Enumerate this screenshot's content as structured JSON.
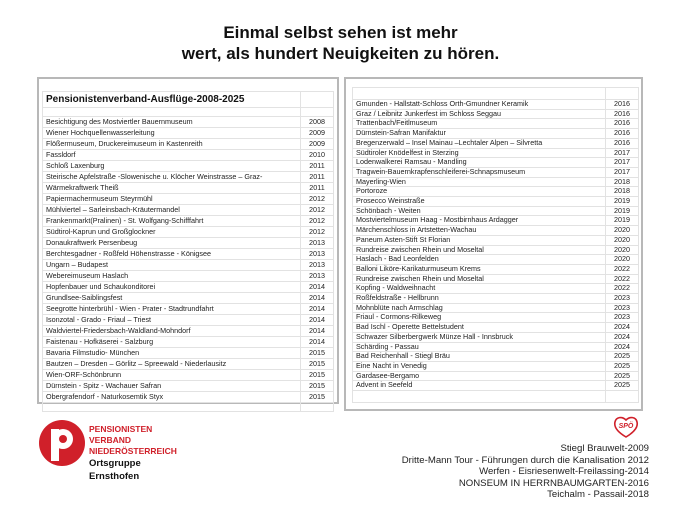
{
  "headline": [
    "Einmal selbst sehen ist mehr",
    "wert, als hundert Neuigkeiten zu hören."
  ],
  "left_table": {
    "title": "Pensionistenverband-Ausflüge-2008-2025",
    "rows": [
      [
        "Besichtigung des Mostviertler Bauernmuseum",
        "2008"
      ],
      [
        "Wiener Hochquellenwasserleitung",
        "2009"
      ],
      [
        "Flößermuseum, Druckereimuseum in Kastenreith",
        "2009"
      ],
      [
        "Fassldorf",
        "2010"
      ],
      [
        "Schloß Laxenburg",
        "2011"
      ],
      [
        "Steirische Apfelstraße -Slowenische u. Klöcher Weinstrasse – Graz-",
        "2011"
      ],
      [
        "Wärmekraftwerk Theiß",
        "2011"
      ],
      [
        "Papiermachermuseum Steyrmühl",
        "2012"
      ],
      [
        "Mühlviertel – Sarleinsbach-Kräutermandel",
        "2012"
      ],
      [
        "Frankenmarkt(Pralinen) - St. Wolfgang-Schifffahrt",
        "2012"
      ],
      [
        "Südtirol-Kaprun und Großglockner",
        "2012"
      ],
      [
        "Donaukraftwerk Persenbeug",
        "2013"
      ],
      [
        "Berchtesgadner - Roßfeld Höhenstrasse - Königsee",
        "2013"
      ],
      [
        "Ungarn – Budapest",
        "2013"
      ],
      [
        "Webereimuseum Haslach",
        "2013"
      ],
      [
        "Hopfenbauer und Schaukonditorei",
        "2014"
      ],
      [
        "Grundlsee-Saiblingsfest",
        "2014"
      ],
      [
        "Seegrotte hinterbrühl - Wien - Prater - Stadtrundfahrt",
        "2014"
      ],
      [
        "Isonzotal - Grado - Friaul – Triest",
        "2014"
      ],
      [
        "Waldviertel-Friedersbach-Waldland-Mohndorf",
        "2014"
      ],
      [
        "Faistenau - Hofkäserei - Salzburg",
        "2014"
      ],
      [
        "Bavaria Filmstudio- München",
        "2015"
      ],
      [
        "Bautzen – Dresden – Görlitz – Spreewald - Niederlausitz",
        "2015"
      ],
      [
        "Wien-ORF-Schönbrunn",
        "2015"
      ],
      [
        "Dürnstein - Spitz  - Wachauer Safran",
        "2015"
      ],
      [
        "Obergrafendorf - Naturkosemtik Styx",
        "2015"
      ]
    ]
  },
  "right_table": {
    "rows": [
      [
        "Gmunden - Hallstatt-Schloss Orth-Gmundner Keramik",
        "2016"
      ],
      [
        "Graz / Leibnitz Junkerfest im Schloss Seggau",
        "2016"
      ],
      [
        "Trattenbach/Feitlmuseum",
        "2016"
      ],
      [
        "Dürnstein-Safran Manifaktur",
        "2016"
      ],
      [
        "Bregenzerwald – Insel Mainau –Lechtaler Alpen – Silvretta",
        "2016"
      ],
      [
        "Südtiroler Knödelfest in Sterzing",
        "2017"
      ],
      [
        "Lodenwalkerei Ramsau - Mandling",
        "2017"
      ],
      [
        "Tragwein-Bauernkrapfenschleiferei-Schnapsmuseum",
        "2017"
      ],
      [
        "Mayerling-Wien",
        "2018"
      ],
      [
        "Portoroze",
        "2018"
      ],
      [
        "Prosecco Weinstraße",
        "2019"
      ],
      [
        "Schönbach - Weiten",
        "2019"
      ],
      [
        "Mostviertelmuseum Haag - Mostbirnhaus Ardagger",
        "2019"
      ],
      [
        "Märchenschloss in Artstetten-Wachau",
        "2020"
      ],
      [
        "Paneum Asten-Stift St Florian",
        "2020"
      ],
      [
        "Rundreise zwischen Rhein und Moseltal",
        "2020"
      ],
      [
        "Haslach - Bad Leonfelden",
        "2020"
      ],
      [
        "Balloni Liköre-Karikaturmuseum Krems",
        "2022"
      ],
      [
        "Rundreise zwischen Rhein und Moseltal",
        "2022"
      ],
      [
        "Kopfing - Waldweihnacht",
        "2022"
      ],
      [
        "Roßfeldstraße - Hellbrunn",
        "2023"
      ],
      [
        "Mohnblüte nach Armschlag",
        "2023"
      ],
      [
        "Friaul - Cormons-Rilkeweg",
        "2023"
      ],
      [
        "Bad Ischl - Operette Bettelstudent",
        "2024"
      ],
      [
        "Schwazer Silberbergwerk Münze Hall - Innsbruck",
        "2024"
      ],
      [
        "Schärding - Passau",
        "2024"
      ],
      [
        "Bad Reichenhall - Stiegl Bräu",
        "2025"
      ],
      [
        "Eine Nacht in Venedig",
        "2025"
      ],
      [
        "Gardasee-Bergamo",
        "2025"
      ],
      [
        "Advent in Seefeld",
        "2025"
      ]
    ]
  },
  "org": {
    "lines": [
      "PENSIONISTEN",
      "VERBAND",
      "NIEDERÖSTERREICH"
    ],
    "group": [
      "Ortsgruppe",
      "Ernsthofen"
    ],
    "logo_color": "#d0202a"
  },
  "spo_logo": "SPÖ",
  "extras": [
    "Stiegl Brauwelt-2009",
    "Dritte-Mann Tour - Führungen durch die Kanalisation 2012",
    "Werfen - Eisriesenwelt-Freilassing-2014",
    "NONSEUM IN HERRNBAUMGARTEN-2016",
    "Teichalm - Passail-2018"
  ]
}
